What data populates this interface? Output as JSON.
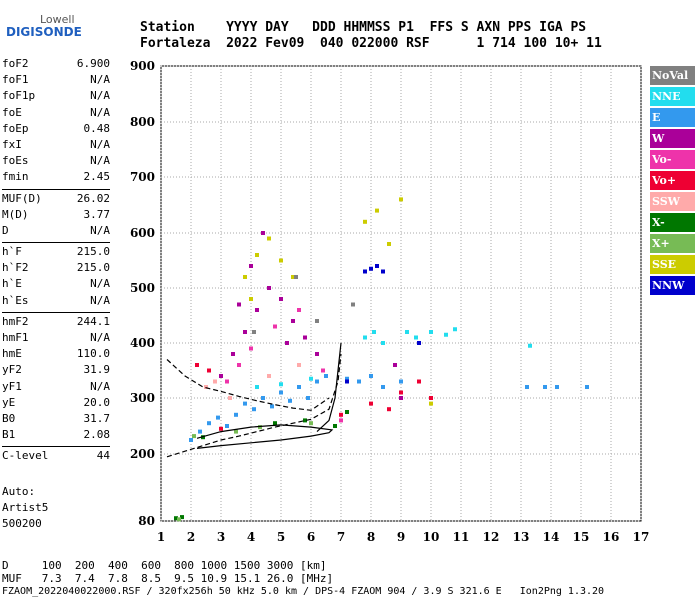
{
  "logo": {
    "top": "Lowell",
    "main": "DIGISONDE"
  },
  "header": {
    "row1": "Station    YYYY DAY   DDD HHMMSS P1  FFS S AXN PPS IGA PS",
    "row2": "Fortaleza  2022 Fev09  040 022000 RSF      1 714 100 10+ 11"
  },
  "params": [
    {
      "group": 1,
      "items": [
        {
          "label": "foF2",
          "value": "6.900"
        },
        {
          "label": "foF1",
          "value": "N/A"
        },
        {
          "label": "foF1p",
          "value": "N/A"
        },
        {
          "label": "foE",
          "value": "N/A"
        },
        {
          "label": "foEp",
          "value": "0.48"
        },
        {
          "label": "fxI",
          "value": "N/A"
        },
        {
          "label": "foEs",
          "value": "N/A"
        },
        {
          "label": "fmin",
          "value": "2.45"
        }
      ]
    },
    {
      "group": 2,
      "items": [
        {
          "label": "MUF(D)",
          "value": "26.02"
        },
        {
          "label": "M(D)",
          "value": "3.77"
        },
        {
          "label": "D",
          "value": "N/A"
        }
      ]
    },
    {
      "group": 3,
      "items": [
        {
          "label": "h`F",
          "value": "215.0"
        },
        {
          "label": "h`F2",
          "value": "215.0"
        },
        {
          "label": "h`E",
          "value": "N/A"
        },
        {
          "label": "h`Es",
          "value": "N/A"
        }
      ]
    },
    {
      "group": 4,
      "items": [
        {
          "label": "hmF2",
          "value": "244.1"
        },
        {
          "label": "hmF1",
          "value": "N/A"
        },
        {
          "label": "hmE",
          "value": "110.0"
        },
        {
          "label": "yF2",
          "value": "31.9"
        },
        {
          "label": "yF1",
          "value": "N/A"
        },
        {
          "label": "yE",
          "value": "20.0"
        },
        {
          "label": "B0",
          "value": "31.7"
        },
        {
          "label": "B1",
          "value": "2.08"
        }
      ]
    },
    {
      "group": 5,
      "items": [
        {
          "label": "C-level",
          "value": "44"
        }
      ]
    }
  ],
  "auto": {
    "line1": "Auto:",
    "line2": "Artist5",
    "line3": "500200"
  },
  "legend": [
    {
      "label": "NoVal",
      "color": "#808080"
    },
    {
      "label": "NNE",
      "color": "#22ddee"
    },
    {
      "label": "E",
      "color": "#3399ee"
    },
    {
      "label": "W",
      "color": "#aa0099"
    },
    {
      "label": "Vo-",
      "color": "#ee33aa"
    },
    {
      "label": "Vo+",
      "color": "#ee0033"
    },
    {
      "label": "SSW",
      "color": "#ffaaaa"
    },
    {
      "label": "X-",
      "color": "#007700"
    },
    {
      "label": "X+",
      "color": "#77bb55"
    },
    {
      "label": "SSE",
      "color": "#cccc00"
    },
    {
      "label": "NNW",
      "color": "#0000cc"
    }
  ],
  "footer": {
    "line1": "D     100  200  400  600  800 1000 1500 3000 [km]",
    "line2": "MUF   7.3  7.4  7.8  8.5  9.5 10.9 15.1 26.0 [MHz]",
    "line3": "FZAOM_2022040022000.RSF / 320fx256h 50 kHz 5.0 km / DPS-4 FZAOM 904 / 3.9 S 321.6 E   Ion2Png 1.3.20"
  },
  "chart_data": {
    "type": "scatter",
    "xlim": [
      1,
      17
    ],
    "ylim": [
      80,
      900
    ],
    "x_ticks": [
      1,
      2,
      3,
      4,
      5,
      6,
      7,
      8,
      9,
      10,
      11,
      12,
      13,
      14,
      15,
      16,
      17
    ],
    "y_ticks": [
      80,
      200,
      300,
      400,
      500,
      600,
      700,
      800,
      900
    ],
    "grid": true,
    "legend_position": "right",
    "point_groups": [
      {
        "color": "#3399ee",
        "points": [
          [
            2.0,
            225
          ],
          [
            2.3,
            240
          ],
          [
            2.6,
            255
          ],
          [
            2.9,
            265
          ],
          [
            3.2,
            250
          ],
          [
            3.5,
            270
          ],
          [
            3.8,
            290
          ],
          [
            4.1,
            280
          ],
          [
            4.4,
            300
          ],
          [
            4.7,
            285
          ],
          [
            5.0,
            310
          ],
          [
            5.3,
            295
          ],
          [
            5.6,
            320
          ],
          [
            5.9,
            300
          ],
          [
            6.2,
            330
          ],
          [
            6.5,
            340
          ],
          [
            7.2,
            335
          ],
          [
            7.6,
            330
          ],
          [
            8.0,
            340
          ],
          [
            8.4,
            320
          ],
          [
            9.0,
            330
          ],
          [
            13.2,
            320
          ],
          [
            13.8,
            320
          ],
          [
            14.2,
            320
          ],
          [
            15.2,
            320
          ]
        ]
      },
      {
        "color": "#22ddee",
        "points": [
          [
            7.8,
            410
          ],
          [
            8.1,
            420
          ],
          [
            8.4,
            400
          ],
          [
            9.2,
            420
          ],
          [
            9.5,
            410
          ],
          [
            10.0,
            420
          ],
          [
            10.5,
            415
          ],
          [
            10.8,
            425
          ],
          [
            13.3,
            395
          ],
          [
            4.2,
            320
          ],
          [
            5.0,
            325
          ],
          [
            6.0,
            335
          ]
        ]
      },
      {
        "color": "#aa0099",
        "points": [
          [
            3.0,
            340
          ],
          [
            3.4,
            380
          ],
          [
            3.8,
            420
          ],
          [
            4.2,
            460
          ],
          [
            4.6,
            500
          ],
          [
            5.0,
            480
          ],
          [
            5.4,
            440
          ],
          [
            5.8,
            410
          ],
          [
            4.0,
            540
          ],
          [
            4.4,
            600
          ],
          [
            3.6,
            470
          ],
          [
            5.2,
            400
          ],
          [
            6.2,
            380
          ],
          [
            8.8,
            360
          ],
          [
            9.0,
            300
          ]
        ]
      },
      {
        "color": "#ee33aa",
        "points": [
          [
            3.2,
            330
          ],
          [
            3.6,
            360
          ],
          [
            4.0,
            390
          ],
          [
            4.8,
            430
          ],
          [
            5.6,
            460
          ],
          [
            6.4,
            350
          ],
          [
            2.8,
            330
          ],
          [
            7.0,
            260
          ]
        ]
      },
      {
        "color": "#ee0033",
        "points": [
          [
            2.2,
            360
          ],
          [
            2.6,
            350
          ],
          [
            3.0,
            245
          ],
          [
            7.0,
            270
          ],
          [
            8.0,
            290
          ],
          [
            9.0,
            310
          ],
          [
            10.0,
            300
          ],
          [
            9.6,
            330
          ],
          [
            8.6,
            280
          ]
        ]
      },
      {
        "color": "#ffaaaa",
        "points": [
          [
            2.8,
            330
          ],
          [
            3.3,
            300
          ],
          [
            4.6,
            340
          ],
          [
            5.6,
            360
          ],
          [
            2.5,
            320
          ]
        ]
      },
      {
        "color": "#007700",
        "points": [
          [
            1.5,
            85
          ],
          [
            1.7,
            87
          ],
          [
            2.4,
            230
          ],
          [
            4.8,
            255
          ],
          [
            5.8,
            260
          ],
          [
            6.8,
            250
          ],
          [
            7.2,
            275
          ]
        ]
      },
      {
        "color": "#77bb55",
        "points": [
          [
            1.6,
            83
          ],
          [
            2.1,
            232
          ],
          [
            3.5,
            240
          ],
          [
            4.3,
            248
          ],
          [
            6.0,
            255
          ]
        ]
      },
      {
        "color": "#cccc00",
        "points": [
          [
            3.8,
            520
          ],
          [
            4.2,
            560
          ],
          [
            4.6,
            590
          ],
          [
            5.0,
            550
          ],
          [
            5.4,
            520
          ],
          [
            4.0,
            480
          ],
          [
            7.8,
            620
          ],
          [
            8.2,
            640
          ],
          [
            8.6,
            580
          ],
          [
            9.0,
            660
          ],
          [
            10.0,
            290
          ]
        ]
      },
      {
        "color": "#0000cc",
        "points": [
          [
            7.8,
            530
          ],
          [
            8.0,
            535
          ],
          [
            8.2,
            540
          ],
          [
            8.4,
            530
          ],
          [
            7.2,
            330
          ],
          [
            9.6,
            400
          ]
        ]
      },
      {
        "color": "#808080",
        "points": [
          [
            4.1,
            420
          ],
          [
            5.5,
            520
          ],
          [
            6.2,
            440
          ],
          [
            7.4,
            470
          ]
        ]
      }
    ],
    "traces": [
      {
        "style": "dashed",
        "points": [
          [
            1.2,
            370
          ],
          [
            1.8,
            340
          ],
          [
            2.4,
            320
          ],
          [
            3.0,
            312
          ],
          [
            3.6,
            303
          ],
          [
            4.2,
            295
          ],
          [
            4.8,
            288
          ],
          [
            5.4,
            282
          ],
          [
            6.0,
            278
          ],
          [
            6.6,
            300
          ]
        ]
      },
      {
        "style": "dashed",
        "points": [
          [
            1.2,
            195
          ],
          [
            1.8,
            205
          ],
          [
            2.4,
            215
          ],
          [
            3.0,
            225
          ],
          [
            3.6,
            232
          ],
          [
            4.2,
            240
          ],
          [
            4.8,
            248
          ],
          [
            5.4,
            255
          ],
          [
            6.0,
            262
          ],
          [
            6.6,
            280
          ],
          [
            6.9,
            330
          ],
          [
            7.0,
            380
          ]
        ]
      },
      {
        "style": "solid",
        "points": [
          [
            2.2,
            210
          ],
          [
            3.0,
            215
          ],
          [
            4.0,
            220
          ],
          [
            5.0,
            225
          ],
          [
            6.0,
            232
          ],
          [
            6.6,
            238
          ],
          [
            6.7,
            243
          ],
          [
            6.0,
            248
          ],
          [
            5.0,
            252
          ],
          [
            4.0,
            248
          ],
          [
            3.0,
            240
          ],
          [
            2.2,
            228
          ]
        ]
      },
      {
        "style": "solid",
        "points": [
          [
            6.2,
            240
          ],
          [
            6.6,
            260
          ],
          [
            6.8,
            300
          ],
          [
            6.9,
            350
          ],
          [
            7.0,
            400
          ]
        ]
      }
    ]
  }
}
